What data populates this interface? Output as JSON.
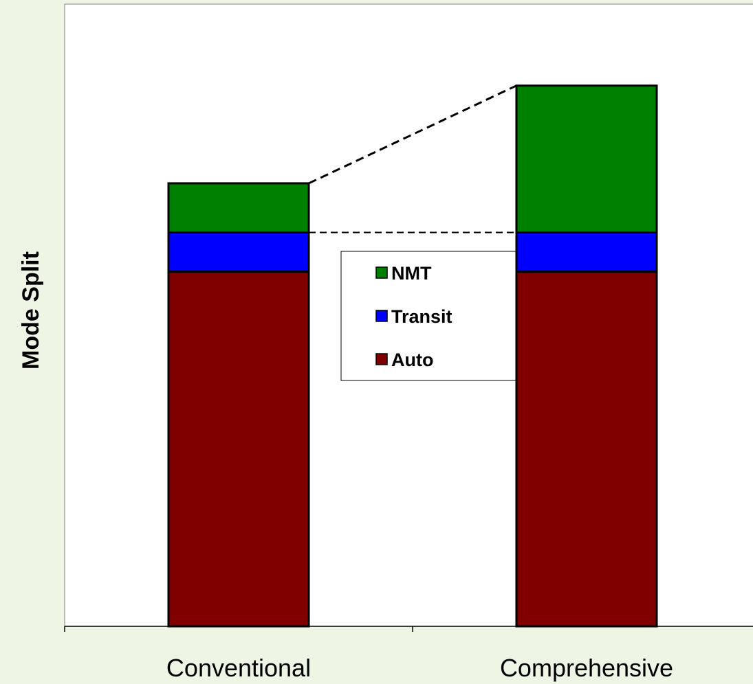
{
  "chart_data": {
    "type": "bar",
    "stacked": true,
    "categories": [
      "Conventional",
      "Comprehensive"
    ],
    "series": [
      {
        "name": "Auto",
        "values": [
          57,
          57
        ],
        "color": "#800000"
      },
      {
        "name": "Transit",
        "values": [
          6.3,
          6.3
        ],
        "color": "#0000ff"
      },
      {
        "name": "NMT",
        "values": [
          7.9,
          23.6
        ],
        "color": "#008000"
      }
    ],
    "ylabel": "Mode Split",
    "xlabel": "",
    "ylim": [
      0,
      100
    ],
    "y_ticks_shown": false,
    "grid": false,
    "legend": {
      "placement": "center",
      "order": [
        "NMT",
        "Transit",
        "Auto"
      ]
    },
    "annotations": [
      "dashed line from top of Conventional bar to top of Comprehensive bar",
      "dashed line at top of Conventional Transit segment"
    ]
  }
}
